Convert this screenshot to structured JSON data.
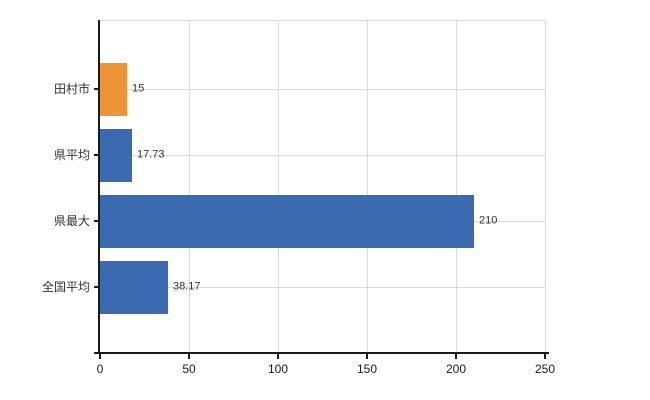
{
  "chart_data": {
    "type": "bar",
    "orientation": "horizontal",
    "title": "",
    "categories": [
      "田村市",
      "県平均",
      "県最大",
      "全国平均"
    ],
    "values": [
      15,
      17.73,
      210,
      38.17
    ],
    "value_labels": [
      "15",
      "17.73",
      "210",
      "38.17"
    ],
    "bar_colors": [
      "#ed9338",
      "#3a6bb0",
      "#3a6bb0",
      "#3a6bb0"
    ],
    "xlim": [
      0,
      250
    ],
    "x_ticks": [
      0,
      50,
      100,
      150,
      200,
      250
    ],
    "grid": true,
    "legend_position": "none"
  },
  "colors": {
    "background": "#ffffff",
    "axis": "#1a1a1a",
    "gridline": "#d9d9d9",
    "bar_orange": "#ed9338",
    "bar_blue": "#3a6bb0",
    "text": "#333333"
  }
}
